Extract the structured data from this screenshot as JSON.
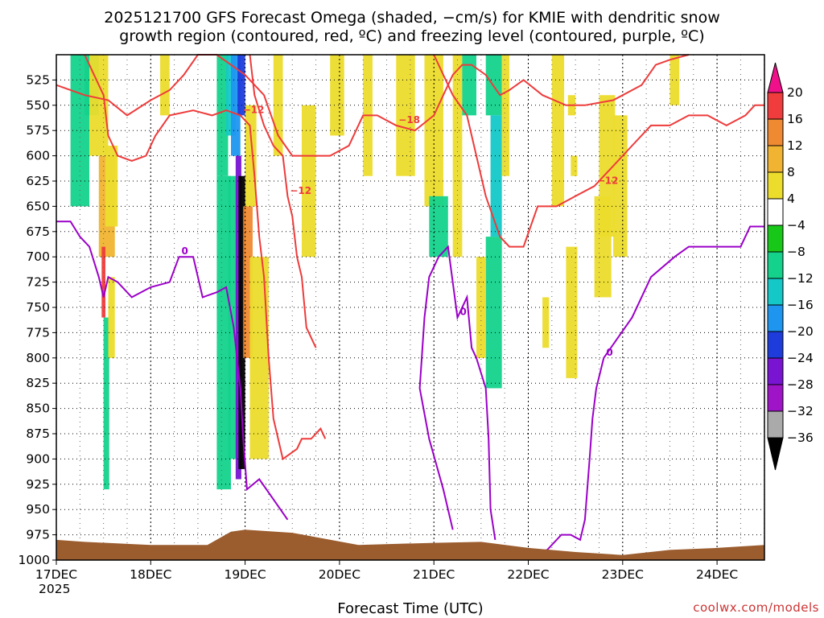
{
  "chart_data": {
    "type": "heatmap",
    "title_line1": "2025121700 GFS Forecast Omega (shaded, −cm/s) for KMIE with dendritic snow",
    "title_line2": "growth region (contoured, red, ºC) and freezing level (contoured, purple, ºC)",
    "xlabel": "Forecast Time (UTC)",
    "x_start_year": "2025",
    "credit": "coolwx.com/models",
    "x_ticks": [
      "17DEC",
      "18DEC",
      "19DEC",
      "20DEC",
      "21DEC",
      "22DEC",
      "23DEC",
      "24DEC"
    ],
    "x_range_days": [
      0,
      7.5
    ],
    "y_ticks": [
      525,
      550,
      575,
      600,
      625,
      650,
      675,
      700,
      725,
      750,
      775,
      800,
      825,
      850,
      875,
      900,
      925,
      950,
      975,
      1000
    ],
    "y_range_hpa": [
      500,
      1000
    ],
    "colorbar": {
      "labels": [
        "20",
        "16",
        "12",
        "8",
        "4",
        "−4",
        "−8",
        "−12",
        "−16",
        "−20",
        "−24",
        "−28",
        "−32",
        "−36"
      ],
      "colors": [
        "#f0108a",
        "#f03c3c",
        "#f08a32",
        "#f0b432",
        "#ecdc2c",
        "#ffffff",
        "#18c818",
        "#14d28c",
        "#14c8c8",
        "#1e96f0",
        "#1e3cdc",
        "#7814d2",
        "#a014c8",
        "#aaaaaa",
        "#000000"
      ]
    },
    "shaded_regions": [
      {
        "t0": 0.15,
        "t1": 0.35,
        "p0": 500,
        "p1": 650,
        "value": -8
      },
      {
        "t0": 0.3,
        "t1": 0.45,
        "p0": 500,
        "p1": 560,
        "value": -10
      },
      {
        "t0": 0.35,
        "t1": 0.55,
        "p0": 500,
        "p1": 600,
        "value": 4
      },
      {
        "t0": 0.45,
        "t1": 0.62,
        "p0": 600,
        "p1": 700,
        "value": 8
      },
      {
        "t0": 0.48,
        "t1": 0.52,
        "p0": 690,
        "p1": 760,
        "value": 16
      },
      {
        "t0": 0.52,
        "t1": 0.65,
        "p0": 590,
        "p1": 670,
        "value": 6
      },
      {
        "t0": 0.5,
        "t1": 0.56,
        "p0": 760,
        "p1": 930,
        "value": -8
      },
      {
        "t0": 0.55,
        "t1": 0.62,
        "p0": 720,
        "p1": 800,
        "value": 5
      },
      {
        "t0": 1.1,
        "t1": 1.2,
        "p0": 500,
        "p1": 560,
        "value": 5
      },
      {
        "t0": 1.7,
        "t1": 1.82,
        "p0": 500,
        "p1": 620,
        "value": -8
      },
      {
        "t0": 1.8,
        "t1": 1.9,
        "p0": 500,
        "p1": 580,
        "value": -12
      },
      {
        "t0": 1.85,
        "t1": 1.95,
        "p0": 500,
        "p1": 600,
        "value": -16
      },
      {
        "t0": 1.92,
        "t1": 2.0,
        "p0": 500,
        "p1": 560,
        "value": -20
      },
      {
        "t0": 1.7,
        "t1": 1.85,
        "p0": 620,
        "p1": 930,
        "value": -8
      },
      {
        "t0": 1.82,
        "t1": 1.92,
        "p0": 620,
        "p1": 900,
        "value": -10
      },
      {
        "t0": 1.9,
        "t1": 1.96,
        "p0": 600,
        "p1": 920,
        "value": -24
      },
      {
        "t0": 1.93,
        "t1": 2.0,
        "p0": 620,
        "p1": 910,
        "value": -36
      },
      {
        "t0": 1.98,
        "t1": 2.08,
        "p0": 650,
        "p1": 800,
        "value": 12
      },
      {
        "t0": 2.0,
        "t1": 2.12,
        "p0": 550,
        "p1": 650,
        "value": 5
      },
      {
        "t0": 2.05,
        "t1": 2.25,
        "p0": 700,
        "p1": 900,
        "value": 5
      },
      {
        "t0": 2.3,
        "t1": 2.4,
        "p0": 500,
        "p1": 600,
        "value": 5
      },
      {
        "t0": 2.6,
        "t1": 2.75,
        "p0": 550,
        "p1": 700,
        "value": 5
      },
      {
        "t0": 2.9,
        "t1": 3.05,
        "p0": 500,
        "p1": 580,
        "value": 5
      },
      {
        "t0": 3.25,
        "t1": 3.35,
        "p0": 500,
        "p1": 620,
        "value": 5
      },
      {
        "t0": 3.6,
        "t1": 3.8,
        "p0": 500,
        "p1": 620,
        "value": 5
      },
      {
        "t0": 3.9,
        "t1": 4.1,
        "p0": 500,
        "p1": 650,
        "value": 5
      },
      {
        "t0": 3.95,
        "t1": 4.15,
        "p0": 640,
        "p1": 700,
        "value": -8
      },
      {
        "t0": 4.2,
        "t1": 4.3,
        "p0": 500,
        "p1": 700,
        "value": 5
      },
      {
        "t0": 4.3,
        "t1": 4.45,
        "p0": 500,
        "p1": 560,
        "value": -8
      },
      {
        "t0": 4.55,
        "t1": 4.72,
        "p0": 500,
        "p1": 560,
        "value": -8
      },
      {
        "t0": 4.6,
        "t1": 4.72,
        "p0": 560,
        "p1": 680,
        "value": -12
      },
      {
        "t0": 4.55,
        "t1": 4.72,
        "p0": 680,
        "p1": 830,
        "value": -8
      },
      {
        "t0": 4.72,
        "t1": 4.8,
        "p0": 500,
        "p1": 620,
        "value": 5
      },
      {
        "t0": 4.45,
        "t1": 4.55,
        "p0": 700,
        "p1": 800,
        "value": 5
      },
      {
        "t0": 5.25,
        "t1": 5.38,
        "p0": 500,
        "p1": 650,
        "value": 5
      },
      {
        "t0": 5.42,
        "t1": 5.5,
        "p0": 540,
        "p1": 560,
        "value": 5
      },
      {
        "t0": 5.15,
        "t1": 5.22,
        "p0": 740,
        "p1": 790,
        "value": 5
      },
      {
        "t0": 5.45,
        "t1": 5.52,
        "p0": 600,
        "p1": 620,
        "value": 5
      },
      {
        "t0": 5.4,
        "t1": 5.52,
        "p0": 690,
        "p1": 820,
        "value": 5
      },
      {
        "t0": 5.7,
        "t1": 5.88,
        "p0": 640,
        "p1": 740,
        "value": 5
      },
      {
        "t0": 5.75,
        "t1": 5.92,
        "p0": 540,
        "p1": 680,
        "value": 5
      },
      {
        "t0": 5.9,
        "t1": 6.05,
        "p0": 560,
        "p1": 700,
        "value": 5
      },
      {
        "t0": 6.5,
        "t1": 6.6,
        "p0": 500,
        "p1": 550,
        "value": 5
      }
    ],
    "freezing_level_series": {
      "name": "0 °C freezing level",
      "color": "#9b00c8",
      "label": "0",
      "points": [
        [
          0.0,
          665
        ],
        [
          0.15,
          665
        ],
        [
          0.25,
          680
        ],
        [
          0.35,
          690
        ],
        [
          0.45,
          720
        ],
        [
          0.5,
          740
        ],
        [
          0.55,
          720
        ],
        [
          0.65,
          725
        ],
        [
          0.8,
          740
        ],
        [
          1.0,
          730
        ],
        [
          1.2,
          725
        ],
        [
          1.3,
          700
        ],
        [
          1.45,
          700
        ],
        [
          1.55,
          740
        ],
        [
          1.7,
          735
        ],
        [
          1.8,
          730
        ],
        [
          1.88,
          770
        ],
        [
          1.95,
          830
        ],
        [
          1.98,
          880
        ],
        [
          2.02,
          930
        ],
        [
          2.15,
          920
        ],
        [
          2.3,
          940
        ],
        [
          2.45,
          960
        ]
      ]
    },
    "freezing_level_series_2": {
      "name": "0 °C freezing level (day 21)",
      "color": "#9b00c8",
      "label": "0",
      "points": [
        [
          4.2,
          970
        ],
        [
          4.1,
          930
        ],
        [
          3.95,
          880
        ],
        [
          3.85,
          830
        ],
        [
          3.9,
          760
        ],
        [
          3.95,
          720
        ],
        [
          4.05,
          700
        ],
        [
          4.15,
          690
        ],
        [
          4.25,
          760
        ],
        [
          4.35,
          740
        ],
        [
          4.4,
          790
        ],
        [
          4.45,
          800
        ],
        [
          4.55,
          830
        ],
        [
          4.58,
          880
        ],
        [
          4.6,
          950
        ],
        [
          4.65,
          980
        ]
      ]
    },
    "freezing_level_series_3": {
      "name": "0 °C freezing level (day 23-24)",
      "color": "#9b00c8",
      "label": "0",
      "points": [
        [
          5.0,
          995
        ],
        [
          5.2,
          990
        ],
        [
          5.35,
          975
        ],
        [
          5.45,
          975
        ],
        [
          5.55,
          980
        ],
        [
          5.6,
          960
        ],
        [
          5.65,
          900
        ],
        [
          5.68,
          860
        ],
        [
          5.72,
          830
        ],
        [
          5.8,
          800
        ],
        [
          5.95,
          780
        ],
        [
          6.1,
          760
        ],
        [
          6.3,
          720
        ],
        [
          6.55,
          700
        ],
        [
          6.7,
          690
        ],
        [
          7.0,
          690
        ],
        [
          7.25,
          690
        ],
        [
          7.35,
          670
        ],
        [
          7.5,
          670
        ]
      ]
    },
    "dgz_series": [
      {
        "name": "-18 °C",
        "color": "#ee3b3b",
        "label": "−18",
        "points": [
          [
            0.0,
            530
          ],
          [
            0.3,
            540
          ],
          [
            0.55,
            545
          ],
          [
            0.75,
            560
          ],
          [
            1.0,
            545
          ],
          [
            1.2,
            535
          ],
          [
            1.35,
            520
          ],
          [
            1.5,
            500
          ],
          [
            1.7,
            500
          ],
          [
            1.85,
            510
          ],
          [
            2.0,
            520
          ],
          [
            2.2,
            540
          ],
          [
            2.35,
            580
          ],
          [
            2.5,
            600
          ],
          [
            2.7,
            600
          ],
          [
            2.9,
            600
          ],
          [
            3.1,
            590
          ],
          [
            3.25,
            560
          ],
          [
            3.4,
            560
          ],
          [
            3.6,
            570
          ],
          [
            3.8,
            575
          ],
          [
            4.0,
            560
          ],
          [
            4.1,
            540
          ],
          [
            4.2,
            520
          ],
          [
            4.3,
            510
          ],
          [
            4.4,
            510
          ],
          [
            4.55,
            520
          ],
          [
            4.7,
            540
          ],
          [
            4.8,
            535
          ],
          [
            4.95,
            525
          ],
          [
            5.15,
            540
          ],
          [
            5.4,
            550
          ],
          [
            5.6,
            550
          ],
          [
            5.9,
            545
          ],
          [
            6.2,
            530
          ],
          [
            6.35,
            510
          ],
          [
            6.5,
            505
          ],
          [
            6.7,
            500
          ]
        ]
      },
      {
        "name": "-12 °C",
        "color": "#ee3b3b",
        "label": "−12",
        "points": [
          [
            0.3,
            500
          ],
          [
            0.4,
            520
          ],
          [
            0.5,
            540
          ],
          [
            0.55,
            580
          ],
          [
            0.65,
            600
          ],
          [
            0.8,
            605
          ],
          [
            0.95,
            600
          ],
          [
            1.05,
            580
          ],
          [
            1.2,
            560
          ],
          [
            1.45,
            555
          ],
          [
            1.65,
            560
          ],
          [
            1.8,
            555
          ],
          [
            1.95,
            560
          ],
          [
            2.05,
            570
          ],
          [
            2.1,
            620
          ],
          [
            2.15,
            680
          ],
          [
            2.2,
            720
          ],
          [
            2.25,
            800
          ],
          [
            2.3,
            860
          ],
          [
            2.4,
            900
          ],
          [
            2.55,
            890
          ],
          [
            2.6,
            880
          ],
          [
            2.7,
            880
          ],
          [
            2.8,
            870
          ],
          [
            2.85,
            880
          ]
        ]
      },
      {
        "name": "-12 °C (upper)",
        "color": "#ee3b3b",
        "label": "−12",
        "points": [
          [
            2.75,
            790
          ],
          [
            2.65,
            770
          ],
          [
            2.6,
            720
          ],
          [
            2.55,
            700
          ],
          [
            2.5,
            660
          ],
          [
            2.45,
            640
          ],
          [
            2.4,
            600
          ],
          [
            2.3,
            590
          ],
          [
            2.2,
            570
          ],
          [
            2.1,
            540
          ],
          [
            2.05,
            500
          ]
        ]
      }
    ],
    "dgz_series_upper_right": [
      {
        "name": "-12 °C (right)",
        "color": "#ee3b3b",
        "label": "−12",
        "points": [
          [
            4.0,
            500
          ],
          [
            4.2,
            540
          ],
          [
            4.35,
            560
          ],
          [
            4.45,
            600
          ],
          [
            4.55,
            640
          ],
          [
            4.7,
            680
          ],
          [
            4.8,
            690
          ],
          [
            4.95,
            690
          ],
          [
            5.1,
            650
          ],
          [
            5.3,
            650
          ],
          [
            5.5,
            640
          ],
          [
            5.7,
            630
          ],
          [
            5.9,
            610
          ],
          [
            6.1,
            590
          ],
          [
            6.3,
            570
          ],
          [
            6.5,
            570
          ],
          [
            6.7,
            560
          ],
          [
            6.9,
            560
          ],
          [
            7.1,
            570
          ],
          [
            7.3,
            560
          ],
          [
            7.4,
            550
          ],
          [
            7.5,
            550
          ]
        ]
      }
    ],
    "terrain_color": "#9b5c2e"
  }
}
